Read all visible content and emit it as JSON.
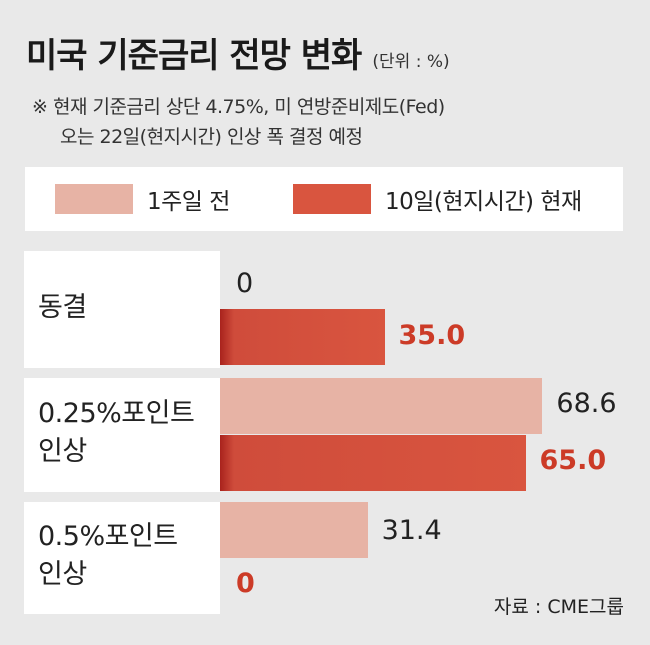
{
  "header": {
    "title": "미국 기준금리 전망 변화",
    "unit": "(단위 : %)",
    "note_line1": "※ 현재 기준금리 상단 4.75%, 미 연방준비제도(Fed)",
    "note_line2": "오는 22일(현지시간) 인상 폭 결정 예정"
  },
  "source": "자료 : CME그룹",
  "colors": {
    "before": "#e7b3a5",
    "now": "#d9553f",
    "now_value_text": "#cc3b27",
    "background": "#e9e9e9"
  },
  "chart_data": {
    "type": "bar",
    "orientation": "horizontal",
    "title": "미국 기준금리 전망 변화",
    "unit": "(단위 : %)",
    "categories": [
      "동결",
      "0.25%포인트\n인상",
      "0.5%포인트\n인상"
    ],
    "category_lines": [
      [
        "동결"
      ],
      [
        "0.25%포인트",
        "인상"
      ],
      [
        "0.5%포인트",
        "인상"
      ]
    ],
    "series": [
      {
        "name": "1주일 전",
        "values": [
          0,
          68.6,
          31.4
        ],
        "labels": [
          "0",
          "68.6",
          "31.4"
        ]
      },
      {
        "name": "10일(현지시간) 현재",
        "values": [
          35.0,
          65.0,
          0
        ],
        "labels": [
          "35.0",
          "65.0",
          "0"
        ]
      }
    ],
    "xlim": [
      0,
      100
    ],
    "grid": false,
    "legend": "top"
  }
}
